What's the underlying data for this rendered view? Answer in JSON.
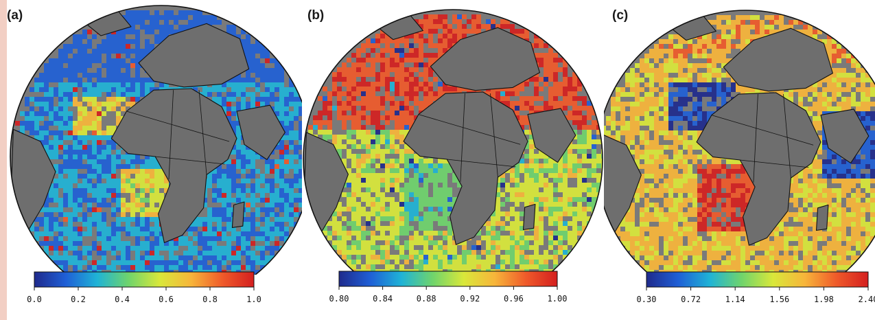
{
  "panels": [
    {
      "label": "(a)",
      "colorbar": {
        "min": 0.0,
        "max": 1.0,
        "ticks": [
          "0.0",
          "0.2",
          "0.4",
          "0.6",
          "0.8",
          "1.0"
        ]
      },
      "palette": [
        "#1f2a8c",
        "#1f5fd6",
        "#1fb3d6",
        "#6fd46c",
        "#d9e83a",
        "#f7b53a",
        "#ef5a2a",
        "#d41f1f"
      ]
    },
    {
      "label": "(b)",
      "colorbar": {
        "min": 0.8,
        "max": 1.0,
        "ticks": [
          "0.80",
          "0.84",
          "0.88",
          "0.92",
          "0.96",
          "1.00"
        ]
      },
      "palette": [
        "#1f2a8c",
        "#1f5fd6",
        "#1fb3d6",
        "#6fd46c",
        "#d9e83a",
        "#f7b53a",
        "#ef5a2a",
        "#d41f1f"
      ]
    },
    {
      "label": "(c)",
      "colorbar": {
        "min": 0.3,
        "max": 2.4,
        "ticks": [
          "0.30",
          "0.72",
          "1.14",
          "1.56",
          "1.98",
          "2.40"
        ]
      },
      "palette": [
        "#1f2a8c",
        "#1f5fd6",
        "#1fb3d6",
        "#6fd46c",
        "#d9e83a",
        "#f7b53a",
        "#ef5a2a",
        "#d41f1f"
      ]
    }
  ],
  "colors": {
    "land": "#6e6e6e",
    "coast": "#111111",
    "background_strip": "#f2cfc4"
  }
}
